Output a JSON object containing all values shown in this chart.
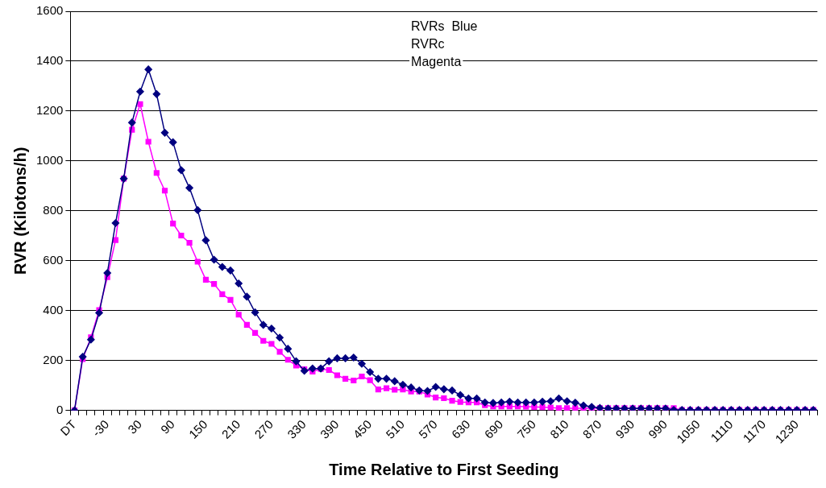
{
  "chart_data": {
    "type": "line",
    "xlabel": "Time Relative to First Seeding",
    "ylabel": "RVR (Kilotons/h)",
    "annotations": [
      "RVRs  Blue",
      "RVRc",
      "Magenta"
    ],
    "categories": [
      "DT",
      null,
      null,
      null,
      "-30",
      null,
      null,
      null,
      "30",
      null,
      null,
      null,
      "90",
      null,
      null,
      null,
      "150",
      null,
      null,
      null,
      "210",
      null,
      null,
      null,
      "270",
      null,
      null,
      null,
      "330",
      null,
      null,
      null,
      "390",
      null,
      null,
      null,
      "450",
      null,
      null,
      null,
      "510",
      null,
      null,
      null,
      "570",
      null,
      null,
      null,
      "630",
      null,
      null,
      null,
      "690",
      null,
      null,
      null,
      "750",
      null,
      null,
      null,
      "810",
      null,
      null,
      null,
      "870",
      null,
      null,
      null,
      "930",
      null,
      null,
      null,
      "990",
      null,
      null,
      null,
      "1050",
      null,
      null,
      null,
      "1110",
      null,
      null,
      null,
      "1170",
      null,
      null,
      null,
      "1230",
      null,
      null
    ],
    "series": [
      {
        "color": "#000080",
        "marker": "diamond",
        "values": [
          0,
          215,
          284,
          391,
          551,
          751,
          929,
          1154,
          1278,
          1367,
          1268,
          1113,
          1075,
          963,
          892,
          803,
          682,
          604,
          575,
          561,
          509,
          456,
          393,
          343,
          328,
          292,
          247,
          197,
          159,
          168,
          168,
          197,
          209,
          209,
          212,
          187,
          154,
          127,
          127,
          117,
          103,
          92,
          80,
          78,
          94,
          85,
          80,
          62,
          48,
          48,
          32,
          30,
          32,
          35,
          32,
          32,
          32,
          35,
          37,
          48,
          37,
          31,
          20,
          14,
          10,
          8,
          8,
          8,
          8,
          8,
          8,
          8,
          8,
          2,
          2,
          2,
          2,
          2,
          2,
          2,
          2,
          2,
          2,
          2,
          2,
          2,
          2,
          2,
          2,
          2,
          2
        ]
      },
      {
        "color": "#ff00ff",
        "marker": "square",
        "values": [
          0,
          206,
          293,
          402,
          534,
          683,
          929,
          1125,
          1228,
          1077,
          952,
          881,
          749,
          701,
          672,
          596,
          524,
          507,
          466,
          443,
          384,
          343,
          311,
          279,
          267,
          235,
          203,
          180,
          165,
          156,
          166,
          162,
          141,
          127,
          120,
          136,
          121,
          84,
          89,
          83,
          84,
          76,
          76,
          64,
          52,
          49,
          39,
          34,
          32,
          32,
          21,
          16,
          16,
          16,
          16,
          15,
          14,
          13,
          12,
          9,
          9,
          9,
          9,
          9,
          9,
          9,
          9,
          9,
          9,
          9,
          9,
          9,
          9,
          9,
          2,
          2,
          2,
          2,
          2,
          2,
          2,
          2,
          2,
          2,
          2,
          2,
          2,
          2,
          2,
          2,
          2
        ]
      }
    ],
    "ylim": [
      0,
      1600
    ],
    "yticks": [
      0,
      200,
      400,
      600,
      800,
      1000,
      1200,
      1400,
      1600
    ],
    "grid": "y",
    "legend": false,
    "line_style": "solid"
  }
}
